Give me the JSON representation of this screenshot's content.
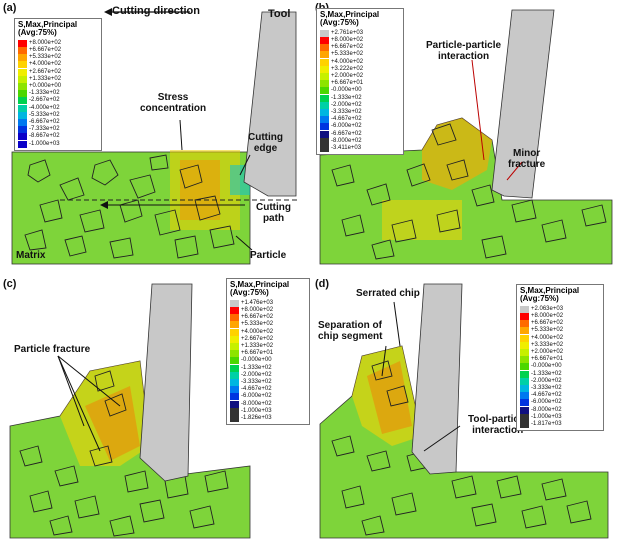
{
  "colors": {
    "legend_a": [
      "#ff0000",
      "#ff6a00",
      "#ffa600",
      "#ffd200",
      "#f0ee00",
      "#c6f000",
      "#8de400",
      "#4cd700",
      "#00d24f",
      "#00d0a6",
      "#00b6e0",
      "#0079f0",
      "#0033e0",
      "#0a00c8"
    ],
    "legend_b": [
      "#c8c8c8",
      "#ff0000",
      "#ff6a00",
      "#ffa600",
      "#ffd200",
      "#f0ee00",
      "#c6f000",
      "#8de400",
      "#4cd700",
      "#00d24f",
      "#00d0a6",
      "#00b6e0",
      "#0079f0",
      "#0033e0",
      "#101080",
      "#333333"
    ],
    "matrix_green": "#7ed43a",
    "tool_gray": "#c8c8c8"
  },
  "panels": {
    "a": {
      "label": "(a)",
      "legend": {
        "title": "S,Max,Principal\n(Avg:75%)",
        "values": [
          "+8.000e+02",
          "+6.667e+02",
          "+5.333e+02",
          "+4.000e+02",
          "+2.667e+02",
          "+1.333e+02",
          "+0.000e+00",
          "-1.333e+02",
          "-2.667e+02",
          "-4.000e+02",
          "-5.333e+02",
          "-6.667e+02",
          "-7.333e+02",
          "-8.667e+02",
          "-1.000e+03"
        ]
      },
      "cutting_direction": "Cutting direction",
      "tool": "Tool",
      "stress_concentration": "Stress\nconcentration",
      "cutting_edge": "Cutting\nedge",
      "cutting_path": "Cutting\npath",
      "matrix": "Matrix",
      "particle": "Particle"
    },
    "b": {
      "label": "(b)",
      "legend": {
        "title": "S,Max,Principal\n(Avg:75%)",
        "values": [
          "+2.761e+03",
          "+8.000e+02",
          "+6.667e+02",
          "+5.333e+02",
          "+4.000e+02",
          "+3.222e+02",
          "+2.000e+02",
          "+6.667e+01",
          "-0.000e+00",
          "-1.333e+02",
          "-2.000e+02",
          "-3.333e+02",
          "-4.667e+02",
          "-6.000e+02",
          "-6.667e+02",
          "-8.000e+02",
          "-3.411e+03"
        ]
      },
      "particle_particle": "Particle-particle\ninteraction",
      "minor_fracture": "Minor\nfracture"
    },
    "c": {
      "label": "(c)",
      "legend": {
        "title": "S,Max,Principal\n(Avg:75%)",
        "values": [
          "+1.476e+03",
          "+8.000e+02",
          "+6.667e+02",
          "+5.333e+02",
          "+4.000e+02",
          "+2.667e+02",
          "+1.333e+02",
          "+6.667e+01",
          "-0.000e+00",
          "-1.333e+02",
          "-2.000e+02",
          "-3.333e+02",
          "-4.667e+02",
          "-6.000e+02",
          "-8.000e+02",
          "-1.000e+03",
          "-1.826e+03"
        ]
      },
      "particle_fracture": "Particle fracture"
    },
    "d": {
      "label": "(d)",
      "legend": {
        "title": "S,Max,Principal\n(Avg:75%)",
        "values": [
          "+2.063e+03",
          "+8.000e+02",
          "+6.667e+02",
          "+5.333e+02",
          "+4.000e+02",
          "+3.333e+02",
          "+2.000e+02",
          "+6.667e+01",
          "-0.000e+00",
          "-1.333e+02",
          "-2.000e+02",
          "-3.333e+02",
          "-4.667e+02",
          "-6.000e+02",
          "-8.000e+02",
          "-1.000e+03",
          "-1.817e+03"
        ]
      },
      "serrated_chip": "Serrated chip",
      "separation": "Separation of\nchip segment",
      "tool_particle": "Tool-particle\ninteraction"
    }
  }
}
